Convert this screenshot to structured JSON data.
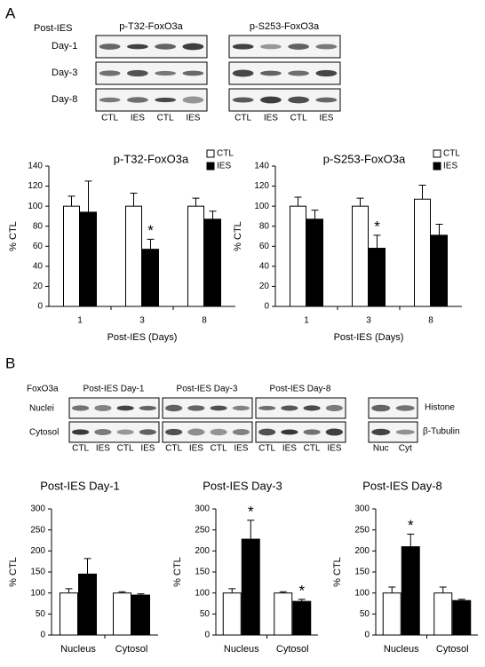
{
  "panel_a": {
    "label": "A",
    "row_header": "Post-IES",
    "rows": [
      "Day-1",
      "Day-3",
      "Day-8"
    ],
    "blots": [
      {
        "title": "p-T32-FoxO3a",
        "lanes": [
          "CTL",
          "IES",
          "CTL",
          "IES"
        ]
      },
      {
        "title": "p-S253-FoxO3a",
        "lanes": [
          "CTL",
          "IES",
          "CTL",
          "IES"
        ]
      }
    ]
  },
  "panel_b": {
    "label": "B",
    "protein": "FoxO3a",
    "rows": [
      "Nuclei",
      "Cytosol"
    ],
    "groups": [
      {
        "title": "Post-IES Day-1",
        "lanes": [
          "CTL",
          "IES",
          "CTL",
          "IES"
        ]
      },
      {
        "title": "Post-IES Day-3",
        "lanes": [
          "CTL",
          "IES",
          "CTL",
          "IES"
        ]
      },
      {
        "title": "Post-IES Day-8",
        "lanes": [
          "CTL",
          "IES",
          "CTL",
          "IES"
        ]
      }
    ],
    "controls": [
      "Histone",
      "β-Tubulin"
    ],
    "control_lanes": [
      "Nuc",
      "Cyt"
    ]
  },
  "chart_data": [
    {
      "type": "bar",
      "title": "p-T32-FoxO3a",
      "x_label": "Post-IES (Days)",
      "y_label": "% CTL",
      "categories": [
        "1",
        "3",
        "8"
      ],
      "ylim": [
        0,
        140
      ],
      "yticks": [
        0,
        20,
        40,
        60,
        80,
        100,
        120,
        140
      ],
      "legend": "upper right",
      "series": [
        {
          "name": "CTL",
          "color": "#ffffff",
          "values": [
            100,
            100,
            100
          ],
          "errors": [
            10,
            13,
            8
          ]
        },
        {
          "name": "IES",
          "color": "#000000",
          "values": [
            94,
            57,
            87
          ],
          "errors": [
            31,
            10,
            8
          ],
          "marker_labels": [
            null,
            "*",
            null
          ]
        }
      ]
    },
    {
      "type": "bar",
      "title": "p-S253-FoxO3a",
      "x_label": "Post-IES (Days)",
      "y_label": "% CTL",
      "categories": [
        "1",
        "3",
        "8"
      ],
      "ylim": [
        0,
        140
      ],
      "yticks": [
        0,
        20,
        40,
        60,
        80,
        100,
        120,
        140
      ],
      "legend": "upper right",
      "series": [
        {
          "name": "CTL",
          "color": "#ffffff",
          "values": [
            100,
            100,
            107
          ],
          "errors": [
            9,
            8,
            14
          ]
        },
        {
          "name": "IES",
          "color": "#000000",
          "values": [
            87,
            58,
            71
          ],
          "errors": [
            9,
            13,
            11
          ],
          "marker_labels": [
            null,
            "*",
            null
          ]
        }
      ]
    },
    {
      "type": "bar",
      "title": "Post-IES Day-1",
      "y_label": "% CTL",
      "categories": [
        "Nucleus",
        "Cytosol"
      ],
      "ylim": [
        0,
        300
      ],
      "yticks": [
        0,
        50,
        100,
        150,
        200,
        250,
        300
      ],
      "series": [
        {
          "color": "#ffffff",
          "values": [
            100,
            100
          ],
          "errors": [
            10,
            3
          ]
        },
        {
          "color": "#000000",
          "values": [
            145,
            95
          ],
          "errors": [
            37,
            3
          ]
        }
      ]
    },
    {
      "type": "bar",
      "title": "Post-IES Day-3",
      "y_label": "% CTL",
      "categories": [
        "Nucleus",
        "Cytosol"
      ],
      "ylim": [
        0,
        300
      ],
      "yticks": [
        0,
        50,
        100,
        150,
        200,
        250,
        300
      ],
      "series": [
        {
          "color": "#ffffff",
          "values": [
            100,
            100
          ],
          "errors": [
            10,
            3
          ]
        },
        {
          "color": "#000000",
          "values": [
            228,
            80
          ],
          "errors": [
            45,
            5
          ],
          "marker_labels": [
            "*",
            "*"
          ]
        }
      ]
    },
    {
      "type": "bar",
      "title": "Post-IES Day-8",
      "y_label": "% CTL",
      "categories": [
        "Nucleus",
        "Cytosol"
      ],
      "ylim": [
        0,
        300
      ],
      "yticks": [
        0,
        50,
        100,
        150,
        200,
        250,
        300
      ],
      "series": [
        {
          "color": "#ffffff",
          "values": [
            100,
            100
          ],
          "errors": [
            14,
            14
          ]
        },
        {
          "color": "#000000",
          "values": [
            210,
            82
          ],
          "errors": [
            30,
            3
          ],
          "marker_labels": [
            "*",
            null
          ]
        }
      ]
    }
  ]
}
